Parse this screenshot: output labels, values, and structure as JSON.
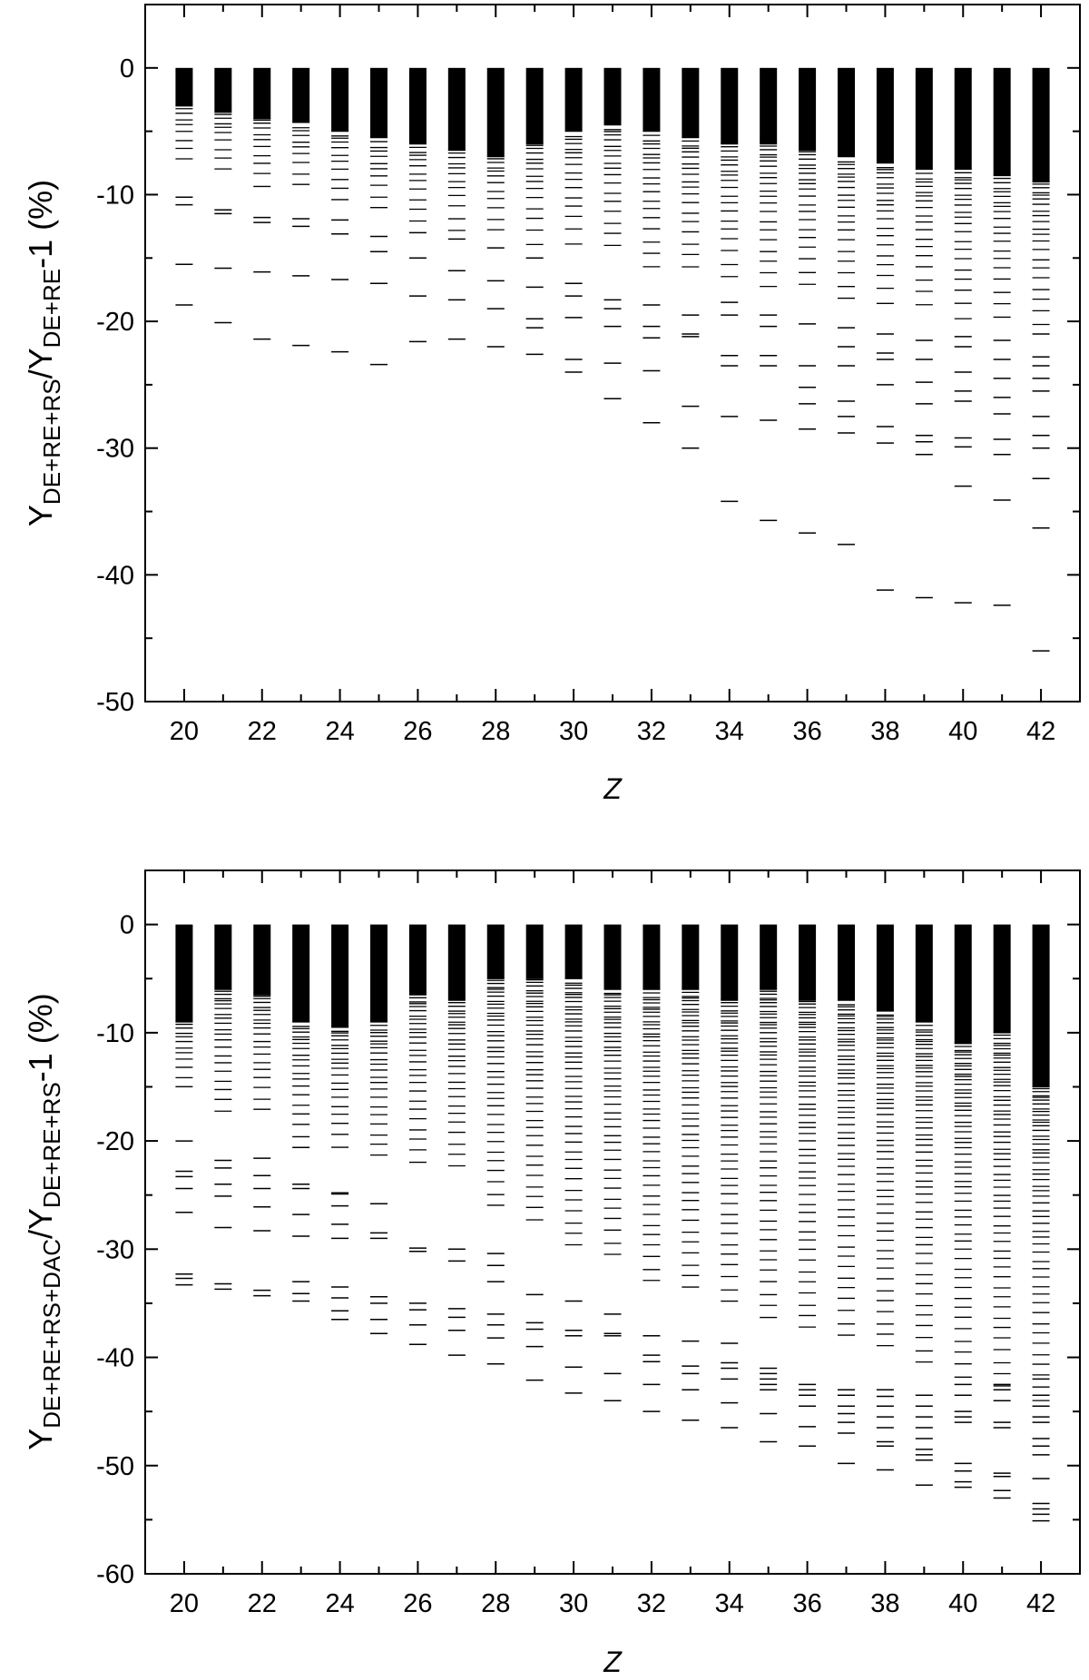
{
  "chart_data": [
    {
      "type": "scatter",
      "marker": "horizontal-dash",
      "title": "",
      "xlabel": "Z",
      "ylabel": {
        "main": "Υ",
        "sub1": "DE+RE+RS",
        "slash": "/",
        "main2": "Υ",
        "sub2": "DE+RE",
        "tail": "-1 (%)"
      },
      "xlim": [
        19,
        43
      ],
      "ylim": [
        -50,
        5
      ],
      "xticks": [
        20,
        22,
        24,
        26,
        28,
        30,
        32,
        34,
        36,
        38,
        40,
        42
      ],
      "yticks": [
        0,
        -10,
        -20,
        -30,
        -40,
        -50
      ],
      "grid": false,
      "x": [
        20,
        21,
        22,
        23,
        24,
        25,
        26,
        27,
        28,
        29,
        30,
        31,
        32,
        33,
        34,
        35,
        36,
        37,
        38,
        39,
        40,
        41,
        42
      ],
      "dense_band_to": [
        -3.0,
        -3.5,
        -4.0,
        -4.3,
        -5.0,
        -5.5,
        -6.0,
        -6.5,
        -7.0,
        -6.0,
        -5.0,
        -4.5,
        -5.0,
        -5.5,
        -6.0,
        -6.0,
        -6.5,
        -7.0,
        -7.5,
        -8.0,
        -8.0,
        -8.5,
        -9.0
      ],
      "scatter_to": [
        -8,
        -9,
        -9.5,
        -10,
        -11,
        -12,
        -12.5,
        -13,
        -13.5,
        -14,
        -14,
        -15,
        -16,
        -16.5,
        -17,
        -18,
        -18,
        -18.5,
        -19,
        -19,
        -20,
        -20,
        -21
      ],
      "outliers": [
        [
          -10.2,
          -10.8,
          -15.5,
          -18.7
        ],
        [
          -11.2,
          -11.5,
          -15.8,
          -20.1
        ],
        [
          -11.8,
          -12.2,
          -16.1,
          -21.4
        ],
        [
          -11.9,
          -12.5,
          -16.4,
          -21.9
        ],
        [
          -12.0,
          -13.1,
          -16.7,
          -22.4
        ],
        [
          -13.3,
          -14.5,
          -17.0,
          -23.4
        ],
        [
          -13.0,
          -15.0,
          -18.0,
          -21.6
        ],
        [
          -13.5,
          -16.0,
          -18.3,
          -21.4
        ],
        [
          -14.2,
          -16.8,
          -19.0,
          -22.0
        ],
        [
          -15.0,
          -17.3,
          -19.8,
          -20.5,
          -22.6
        ],
        [
          -17.0,
          -18.0,
          -19.7,
          -23.0,
          -24.0
        ],
        [
          -18.3,
          -19.0,
          -20.4,
          -23.3,
          -26.1
        ],
        [
          -18.7,
          -20.4,
          -21.3,
          -23.9,
          -28.0
        ],
        [
          -19.5,
          -21.0,
          -21.2,
          -26.7,
          -30.0
        ],
        [
          -18.5,
          -19.5,
          -22.7,
          -23.5,
          -27.5,
          -34.2
        ],
        [
          -19.5,
          -20.4,
          -22.7,
          -23.5,
          -27.8,
          -35.7
        ],
        [
          -20.2,
          -23.5,
          -25.2,
          -26.5,
          -28.5,
          -36.7
        ],
        [
          -20.5,
          -22.0,
          -23.5,
          -26.3,
          -27.5,
          -28.8,
          -37.6
        ],
        [
          -21.0,
          -22.5,
          -23.0,
          -25.0,
          -28.3,
          -29.6,
          -41.2
        ],
        [
          -21.5,
          -23.0,
          -24.8,
          -26.5,
          -29.0,
          -29.5,
          -30.5,
          -41.8
        ],
        [
          -21.2,
          -22.0,
          -24.0,
          -25.5,
          -26.3,
          -29.2,
          -29.9,
          -33.0,
          -42.2
        ],
        [
          -21.5,
          -23.0,
          -24.5,
          -26.0,
          -27.3,
          -29.3,
          -30.5,
          -34.1,
          -42.4
        ],
        [
          -21.0,
          -22.8,
          -23.5,
          -24.5,
          -25.5,
          -27.5,
          -29.0,
          -30.0,
          -32.4,
          -36.3,
          -46.0
        ]
      ]
    },
    {
      "type": "scatter",
      "marker": "horizontal-dash",
      "title": "",
      "xlabel": "Z",
      "ylabel": {
        "main": "Υ",
        "sub1": "DE+RE+RS+DAC",
        "slash": "/",
        "main2": "Υ",
        "sub2": "DE+RE+RS",
        "tail": "-1 (%)"
      },
      "xlim": [
        19,
        43
      ],
      "ylim": [
        -60,
        5
      ],
      "xticks": [
        20,
        22,
        24,
        26,
        28,
        30,
        32,
        34,
        36,
        38,
        40,
        42
      ],
      "yticks": [
        0,
        -10,
        -20,
        -30,
        -40,
        -50,
        -60
      ],
      "grid": false,
      "x": [
        20,
        21,
        22,
        23,
        24,
        25,
        26,
        27,
        28,
        29,
        30,
        31,
        32,
        33,
        34,
        35,
        36,
        37,
        38,
        39,
        40,
        41,
        42
      ],
      "dense_band_to": [
        -9,
        -6,
        -6.5,
        -9,
        -9.5,
        -9,
        -6.5,
        -7,
        -5,
        -5,
        -5,
        -6,
        -6,
        -6,
        -7,
        -6,
        -7,
        -7,
        -8,
        -9,
        -11,
        -10,
        -15
      ],
      "scatter_to": [
        -16,
        -18,
        -18,
        -20,
        -21,
        -22,
        -22,
        -23,
        -27,
        -28,
        -30,
        -31,
        -34,
        -34,
        -35,
        -37,
        -38,
        -38,
        -40,
        -41,
        -42,
        -43,
        -45
      ],
      "outliers": [
        [
          -20.0,
          -22.8,
          -23.3,
          -24.4,
          -26.6,
          -32.3,
          -32.7,
          -33.3
        ],
        [
          -21.8,
          -22.5,
          -24.0,
          -25.1,
          -28.0,
          -33.2,
          -33.7
        ],
        [
          -21.6,
          -23.2,
          -24.4,
          -26.1,
          -28.3,
          -33.8,
          -34.3
        ],
        [
          -20.6,
          -24.0,
          -24.4,
          -26.8,
          -28.8,
          -33.0,
          -34.1,
          -34.8
        ],
        [
          -24.8,
          -24.9,
          -26.0,
          -27.7,
          -29.0,
          -33.5,
          -34.5,
          -35.7,
          -36.5
        ],
        [
          -25.8,
          -28.5,
          -29.0,
          -34.4,
          -35.0,
          -36.5,
          -37.8
        ],
        [
          -29.9,
          -30.2,
          -35.0,
          -35.6,
          -37.0,
          -38.8
        ],
        [
          -30.0,
          -31.1,
          -35.5,
          -36.3,
          -37.5,
          -39.8
        ],
        [
          -30.4,
          -31.5,
          -33.0,
          -36.0,
          -37.0,
          -38.2,
          -40.6
        ],
        [
          -34.2,
          -36.8,
          -37.4,
          -39.0,
          -42.1
        ],
        [
          -34.8,
          -37.5,
          -38.0,
          -40.9,
          -43.3
        ],
        [
          -36.0,
          -37.8,
          -38.0,
          -41.5,
          -44.0
        ],
        [
          -38.0,
          -39.8,
          -40.4,
          -42.5,
          -45.0
        ],
        [
          -38.5,
          -40.8,
          -41.5,
          -43.0,
          -45.8
        ],
        [
          -38.7,
          -40.5,
          -41.0,
          -42.0,
          -44.2,
          -46.5
        ],
        [
          -41.0,
          -41.5,
          -42.0,
          -42.5,
          -43.0,
          -45.2,
          -47.8
        ],
        [
          -42.5,
          -43.0,
          -43.5,
          -44.5,
          -46.4,
          -48.2
        ],
        [
          -43.0,
          -43.5,
          -44.5,
          -45.2,
          -46.0,
          -47.0,
          -49.8
        ],
        [
          -43.0,
          -43.6,
          -44.5,
          -45.5,
          -46.5,
          -47.8,
          -48.2,
          -50.4
        ],
        [
          -43.5,
          -44.5,
          -45.5,
          -46.5,
          -47.5,
          -48.5,
          -49.0,
          -49.5,
          -51.8
        ],
        [
          -42.5,
          -43.5,
          -45.0,
          -45.5,
          -46.0,
          -49.8,
          -50.5,
          -51.5,
          -52.0
        ],
        [
          -42.5,
          -43.0,
          -44.0,
          -46.0,
          -46.5,
          -50.7,
          -51.0,
          -52.3,
          -53.0
        ],
        [
          -42.0,
          -43.5,
          -44.5,
          -45.5,
          -46.0,
          -47.5,
          -48.2,
          -49.0,
          -51.2,
          -53.5,
          -54.0,
          -54.5,
          -55.1
        ]
      ]
    }
  ]
}
